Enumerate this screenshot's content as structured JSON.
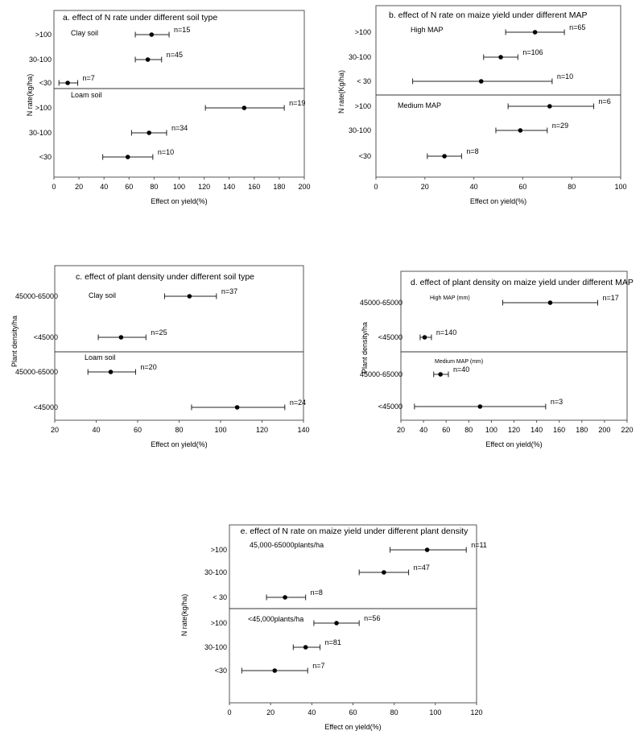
{
  "chart_data": [
    {
      "id": "a",
      "type": "scatter",
      "title": "a. effect of N rate under different soil type",
      "xlabel": "Effect on yield(%)",
      "ylabel": "N rate(kg/ha)",
      "xlim": [
        0,
        200
      ],
      "xticks": [
        0,
        20,
        40,
        60,
        80,
        100,
        120,
        140,
        160,
        180,
        200
      ],
      "group_labels": [
        "Clay soil",
        "Loam soil"
      ],
      "categories": [
        ">100",
        "30-100",
        "<30",
        ">100",
        "30-100",
        "<30"
      ],
      "values": [
        78,
        75,
        11,
        152,
        76,
        59
      ],
      "ci_low": [
        65,
        65,
        4,
        121,
        62,
        39
      ],
      "ci_high": [
        92,
        86,
        19,
        184,
        90,
        79
      ],
      "n_labels": [
        "n=15",
        "n=45",
        "n=7",
        "n=19",
        "n=34",
        "n=10"
      ]
    },
    {
      "id": "b",
      "type": "scatter",
      "title": "b. effect of N rate on maize yield under different MAP",
      "xlabel": "Effect on yield(%)",
      "ylabel": "N rate(Kg/ha)",
      "xlim": [
        0,
        100
      ],
      "xticks": [
        0,
        20,
        40,
        60,
        80,
        100
      ],
      "group_labels": [
        "High MAP",
        "Medium MAP"
      ],
      "categories": [
        ">100",
        "30-100",
        "< 30",
        ">100",
        "30-100",
        "<30"
      ],
      "values": [
        65,
        51,
        43,
        71,
        59,
        28
      ],
      "ci_low": [
        53,
        44,
        15,
        54,
        49,
        21
      ],
      "ci_high": [
        77,
        58,
        72,
        89,
        70,
        35
      ],
      "n_labels": [
        "n=65",
        "n=106",
        "n=10",
        "n=6",
        "n=29",
        "n=8"
      ]
    },
    {
      "id": "c",
      "type": "scatter",
      "title": "c. effect of plant density under different soil type",
      "xlabel": "Effect on yield(%)",
      "ylabel": "Plant density/ha",
      "xlim": [
        20,
        140
      ],
      "xticks": [
        20,
        40,
        60,
        80,
        100,
        120,
        140
      ],
      "group_labels": [
        "Clay soil",
        "Loam soil"
      ],
      "categories": [
        "45000-65000",
        "<45000",
        "45000-65000",
        "<45000"
      ],
      "values": [
        85,
        52,
        47,
        108
      ],
      "ci_low": [
        73,
        41,
        36,
        86
      ],
      "ci_high": [
        98,
        64,
        59,
        131
      ],
      "n_labels": [
        "n=37",
        "n=25",
        "n=20",
        "n=24"
      ]
    },
    {
      "id": "d",
      "type": "scatter",
      "title": "d. effect of plant density on maize yield under different MAP",
      "xlabel": "Effect on yield(%)",
      "ylabel": "Plant density/ha",
      "xlim": [
        20,
        220
      ],
      "xticks": [
        20,
        40,
        60,
        80,
        100,
        120,
        140,
        160,
        180,
        200,
        220
      ],
      "group_labels": [
        "High MAP (mm)",
        "Medium MAP (mm)"
      ],
      "categories": [
        "45000-65000",
        "<45000",
        "45000-65000",
        "<45000"
      ],
      "values": [
        152,
        41,
        55,
        90
      ],
      "ci_low": [
        110,
        37,
        49,
        32
      ],
      "ci_high": [
        194,
        47,
        62,
        148
      ],
      "n_labels": [
        "n=17",
        "n=140",
        "n=40",
        "n=3"
      ]
    },
    {
      "id": "e",
      "type": "scatter",
      "title": "e. effect of N rate on maize yield under different plant density",
      "xlabel": "Effect on yield(%)",
      "ylabel": "N rate(kg/ha)",
      "xlim": [
        0,
        120
      ],
      "xticks": [
        0,
        20,
        40,
        60,
        80,
        100,
        120
      ],
      "group_labels": [
        "45,000-65000plants/ha",
        "<45,000plants/ha"
      ],
      "categories": [
        ">100",
        "30-100",
        "< 30",
        ">100",
        "30-100",
        "<30"
      ],
      "values": [
        96,
        75,
        27,
        52,
        37,
        22
      ],
      "ci_low": [
        78,
        63,
        18,
        41,
        31,
        6
      ],
      "ci_high": [
        115,
        87,
        37,
        63,
        44,
        38
      ],
      "n_labels": [
        "n=11",
        "n=47",
        "n=8",
        "n=56",
        "n=81",
        "n=7"
      ]
    }
  ]
}
